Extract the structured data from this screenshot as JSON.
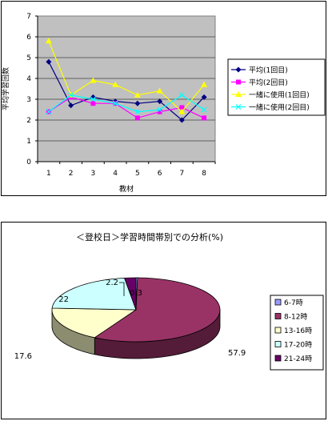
{
  "line_legend": [
    {
      "name": "平均(1回目)",
      "color": "#000080",
      "marker": "diamond"
    },
    {
      "name": "平均(2回目)",
      "color": "#ff00ff",
      "marker": "square"
    },
    {
      "name": "一緒に使用(1回目)",
      "color": "#ffff00",
      "marker": "triangle"
    },
    {
      "name": "一緒に使用(2回目)",
      "color": "#00ffff",
      "marker": "x"
    }
  ],
  "pie_legend": [
    {
      "name": "6-7時",
      "color": "#9999ff"
    },
    {
      "name": "8-12時",
      "color": "#993366"
    },
    {
      "name": "13-16時",
      "color": "#ffffcc"
    },
    {
      "name": "17-20時",
      "color": "#ccffff"
    },
    {
      "name": "21-24時",
      "color": "#660066"
    }
  ],
  "chart_data": [
    {
      "type": "line",
      "title": "",
      "xlabel": "教材",
      "ylabel": "平均学習回数",
      "x": [
        1,
        2,
        3,
        4,
        5,
        6,
        7,
        8
      ],
      "ylim": [
        0,
        7
      ],
      "yticks": [
        0,
        1,
        2,
        3,
        4,
        5,
        6,
        7
      ],
      "grid": true,
      "legend": "right",
      "series": [
        {
          "name": "平均(1回目)",
          "values": [
            4.8,
            2.7,
            3.1,
            2.9,
            2.8,
            2.9,
            2.0,
            3.1
          ]
        },
        {
          "name": "平均(2回目)",
          "values": [
            2.4,
            3.1,
            2.8,
            2.8,
            2.1,
            2.4,
            2.6,
            2.1
          ]
        },
        {
          "name": "一緒に使用(1回目)",
          "values": [
            5.8,
            3.2,
            3.9,
            3.7,
            3.2,
            3.4,
            2.4,
            3.7
          ]
        },
        {
          "name": "一緒に使用(2回目)",
          "values": [
            2.4,
            3.2,
            3.0,
            2.8,
            2.4,
            2.5,
            3.2,
            2.5
          ]
        }
      ]
    },
    {
      "type": "pie",
      "title": "＜登校日＞学習時間帯別での分析(%)",
      "categories": [
        "6-7時",
        "8-12時",
        "13-16時",
        "17-20時",
        "21-24時"
      ],
      "values": [
        0.3,
        57.9,
        17.6,
        22,
        2.2
      ],
      "labels": [
        "0.3",
        "57.9",
        "17.6",
        "22",
        "2.2"
      ],
      "legend": "right"
    }
  ]
}
